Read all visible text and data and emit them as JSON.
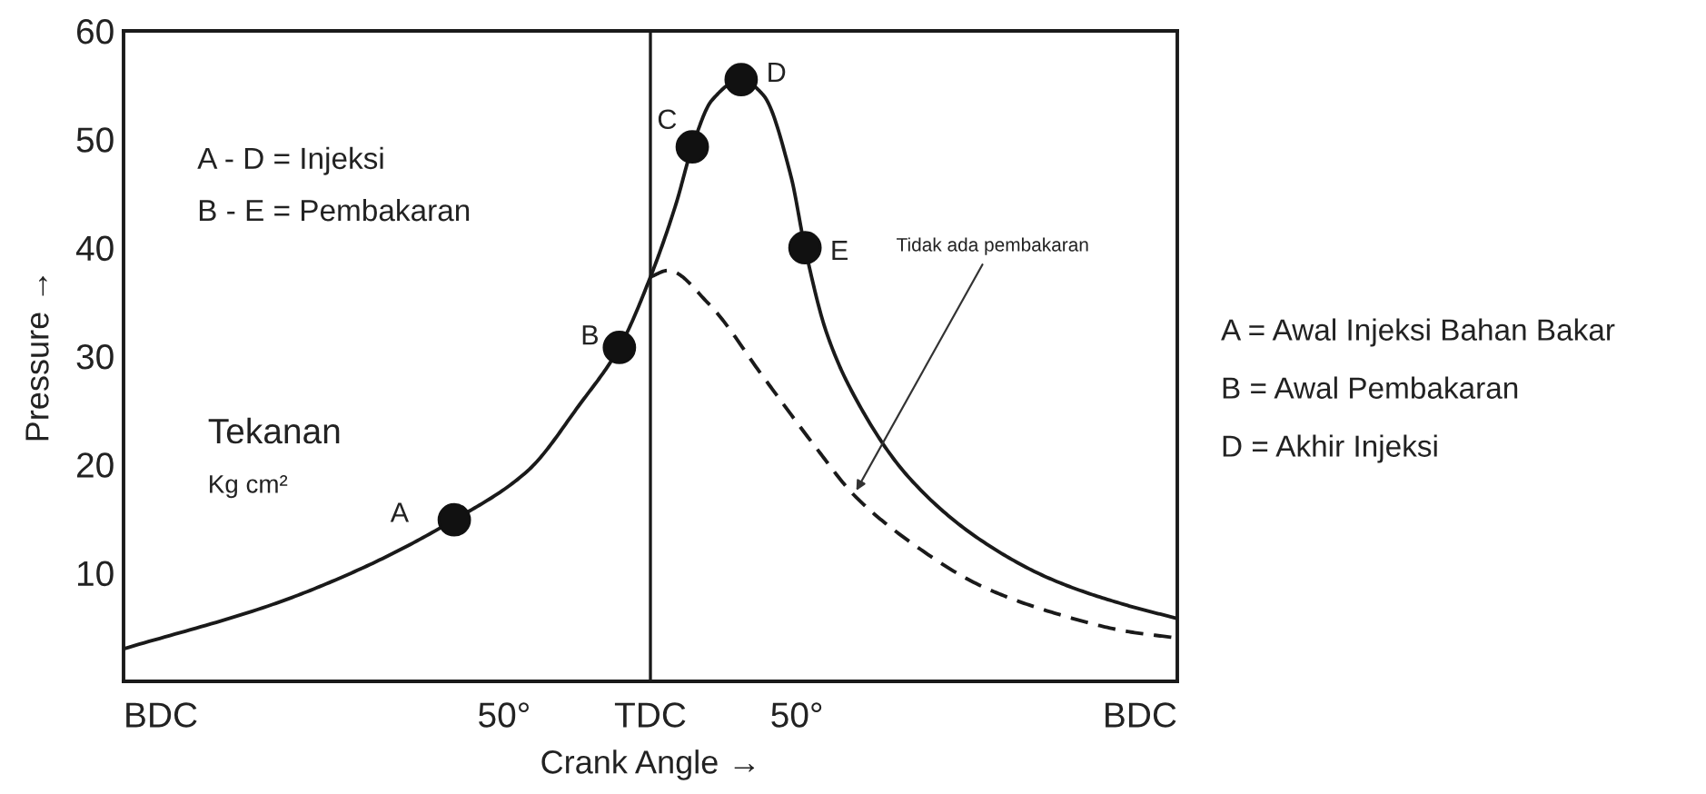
{
  "chart_data": {
    "type": "line",
    "xlabel": "Crank Angle →",
    "ylabel": "Pressure →",
    "xlim": [
      -180,
      180
    ],
    "ylim": [
      0,
      60
    ],
    "xticks": [
      {
        "value": -180,
        "label": "BDC"
      },
      {
        "value": -50,
        "label": "50°"
      },
      {
        "value": 0,
        "label": "TDC"
      },
      {
        "value": 50,
        "label": "50°"
      },
      {
        "value": 180,
        "label": "BDC"
      }
    ],
    "yticks": [
      10,
      20,
      30,
      40,
      50,
      60
    ],
    "grid": false,
    "legend": false,
    "ref_lines": [
      {
        "axis": "x",
        "value": 0,
        "color": "#1a1a1a",
        "line_style": "solid"
      }
    ],
    "series": [
      {
        "color": "#1a1a1a",
        "line_style": "solid",
        "marker": "none",
        "x": [
          -180,
          -129,
          -98,
          -67,
          -42,
          -24,
          -10.6,
          0,
          8.7,
          14.3,
          21,
          31,
          38.5,
          48,
          52.8,
          60,
          69.5,
          88,
          113,
          138,
          163,
          180
        ],
        "values": [
          3,
          7.1,
          10.5,
          14.9,
          19.4,
          25.6,
          30.8,
          37.3,
          44,
          49.3,
          53.6,
          55.5,
          54.1,
          46.6,
          40,
          32.3,
          26.4,
          18.9,
          13,
          9.3,
          7,
          5.8
        ]
      },
      {
        "color": "#1a1a1a",
        "line_style": "dashed",
        "marker": "none",
        "x": [
          0,
          6,
          20,
          38.5,
          57,
          69.5,
          88,
          113,
          138,
          163,
          180
        ],
        "values": [
          37.3,
          37.9,
          34.8,
          28.1,
          21.4,
          17.2,
          13,
          8.8,
          6.3,
          4.6,
          4
        ]
      },
      {
        "type": "scatter",
        "color": "#111111",
        "marker": "circle",
        "x": [
          -67,
          -10.6,
          14.3,
          31,
          52.8
        ],
        "values": [
          14.9,
          30.8,
          49.3,
          55.5,
          40
        ]
      }
    ],
    "annotations": [
      {
        "text": "A",
        "x": -67,
        "y": 14.9
      },
      {
        "text": "B",
        "x": -10.6,
        "y": 30.8
      },
      {
        "text": "C",
        "x": 14.3,
        "y": 49.3
      },
      {
        "text": "D",
        "x": 31,
        "y": 55.5
      },
      {
        "text": "E",
        "x": 52.8,
        "y": 40
      },
      {
        "text": "Tidak ada pembakaran",
        "x": 69.5,
        "y": 17.2
      },
      "A - D = Injeksi",
      "B - E = Pembakaran",
      "Tekanan",
      "Kg cm²",
      "A = Awal Injeksi Bahan Bakar",
      "B = Awal Pembakaran",
      "D = Akhir Injeksi"
    ]
  }
}
